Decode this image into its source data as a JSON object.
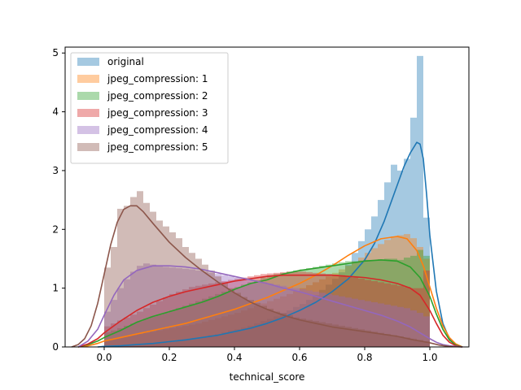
{
  "chart_data": {
    "type": "histogram-kde",
    "title": "",
    "xlabel": "technical_score",
    "ylabel": "",
    "xlim": [
      -0.12,
      1.12
    ],
    "ylim": [
      0,
      5.1
    ],
    "xticks": [
      "0.0",
      "0.2",
      "0.4",
      "0.6",
      "0.8",
      "1.0"
    ],
    "xtick_values": [
      0.0,
      0.2,
      0.4,
      0.6,
      0.8,
      1.0
    ],
    "yticks": [
      "0",
      "1",
      "2",
      "3",
      "4",
      "5"
    ],
    "ytick_values": [
      0,
      1,
      2,
      3,
      4,
      5
    ],
    "grid": false,
    "legend_position": "upper-left",
    "bin_edges": [
      0.0,
      0.02,
      0.04,
      0.06,
      0.08,
      0.1,
      0.12,
      0.14,
      0.16,
      0.18,
      0.2,
      0.22,
      0.24,
      0.26,
      0.28,
      0.3,
      0.32,
      0.34,
      0.36,
      0.38,
      0.4,
      0.42,
      0.44,
      0.46,
      0.48,
      0.5,
      0.52,
      0.54,
      0.56,
      0.58,
      0.6,
      0.62,
      0.64,
      0.66,
      0.68,
      0.7,
      0.72,
      0.74,
      0.76,
      0.78,
      0.8,
      0.82,
      0.84,
      0.86,
      0.88,
      0.9,
      0.92,
      0.94,
      0.96,
      0.98,
      1.0
    ],
    "series": [
      {
        "name": "original",
        "color": "#1f77b4",
        "hist": [
          0.01,
          0.01,
          0.02,
          0.02,
          0.03,
          0.03,
          0.04,
          0.05,
          0.06,
          0.07,
          0.08,
          0.1,
          0.12,
          0.13,
          0.15,
          0.17,
          0.2,
          0.22,
          0.25,
          0.28,
          0.3,
          0.33,
          0.36,
          0.4,
          0.44,
          0.48,
          0.52,
          0.58,
          0.62,
          0.68,
          0.73,
          0.8,
          0.88,
          0.97,
          1.06,
          1.16,
          1.27,
          1.4,
          1.6,
          1.8,
          2.0,
          2.22,
          2.5,
          2.8,
          3.1,
          3.0,
          3.2,
          3.9,
          4.95,
          2.2
        ],
        "kde_x": [
          -0.02,
          0.0,
          0.05,
          0.1,
          0.15,
          0.2,
          0.25,
          0.3,
          0.35,
          0.4,
          0.45,
          0.5,
          0.55,
          0.6,
          0.65,
          0.7,
          0.75,
          0.8,
          0.83,
          0.86,
          0.89,
          0.92,
          0.94,
          0.96,
          0.97,
          0.98,
          0.99,
          1.0,
          1.02,
          1.04,
          1.06,
          1.08,
          1.1
        ],
        "kde_y": [
          0.0,
          0.01,
          0.02,
          0.04,
          0.06,
          0.09,
          0.12,
          0.16,
          0.2,
          0.26,
          0.32,
          0.4,
          0.5,
          0.62,
          0.76,
          0.94,
          1.16,
          1.48,
          1.76,
          2.14,
          2.6,
          3.06,
          3.3,
          3.48,
          3.45,
          3.2,
          2.6,
          1.9,
          0.95,
          0.4,
          0.14,
          0.04,
          0.0
        ]
      },
      {
        "name": "jpeg_compression: 1",
        "color": "#ff7f0e",
        "hist": [
          0.12,
          0.14,
          0.16,
          0.18,
          0.2,
          0.22,
          0.24,
          0.26,
          0.28,
          0.3,
          0.32,
          0.34,
          0.36,
          0.38,
          0.4,
          0.43,
          0.46,
          0.49,
          0.52,
          0.55,
          0.58,
          0.62,
          0.66,
          0.7,
          0.74,
          0.78,
          0.82,
          0.86,
          0.9,
          0.95,
          1.0,
          1.05,
          1.1,
          1.15,
          1.2,
          1.26,
          1.32,
          1.38,
          1.45,
          1.52,
          1.6,
          1.68,
          1.75,
          1.82,
          1.88,
          1.9,
          1.92,
          1.85,
          1.7,
          1.5
        ],
        "kde_x": [
          -0.08,
          -0.05,
          -0.02,
          0.0,
          0.05,
          0.1,
          0.15,
          0.2,
          0.25,
          0.3,
          0.35,
          0.4,
          0.45,
          0.5,
          0.55,
          0.6,
          0.65,
          0.7,
          0.75,
          0.8,
          0.85,
          0.9,
          0.93,
          0.96,
          0.98,
          1.0,
          1.02,
          1.04,
          1.06,
          1.08,
          1.1
        ],
        "kde_y": [
          0.0,
          0.02,
          0.06,
          0.1,
          0.16,
          0.22,
          0.28,
          0.34,
          0.4,
          0.48,
          0.56,
          0.64,
          0.74,
          0.84,
          0.96,
          1.08,
          1.22,
          1.38,
          1.56,
          1.72,
          1.84,
          1.88,
          1.84,
          1.64,
          1.38,
          1.02,
          0.66,
          0.36,
          0.16,
          0.05,
          0.0
        ]
      },
      {
        "name": "jpeg_compression: 2",
        "color": "#2ca02c",
        "hist": [
          0.25,
          0.28,
          0.32,
          0.36,
          0.4,
          0.44,
          0.48,
          0.52,
          0.55,
          0.58,
          0.62,
          0.66,
          0.7,
          0.74,
          0.78,
          0.82,
          0.86,
          0.9,
          0.94,
          0.98,
          1.02,
          1.06,
          1.1,
          1.14,
          1.18,
          1.22,
          1.24,
          1.26,
          1.28,
          1.3,
          1.32,
          1.34,
          1.36,
          1.38,
          1.4,
          1.42,
          1.44,
          1.46,
          1.46,
          1.47,
          1.48,
          1.48,
          1.49,
          1.5,
          1.5,
          1.48,
          1.52,
          1.55,
          1.65,
          1.55
        ],
        "kde_x": [
          -0.08,
          -0.05,
          -0.02,
          0.0,
          0.05,
          0.1,
          0.15,
          0.2,
          0.25,
          0.3,
          0.35,
          0.4,
          0.45,
          0.5,
          0.55,
          0.6,
          0.65,
          0.7,
          0.75,
          0.8,
          0.85,
          0.9,
          0.94,
          0.97,
          1.0,
          1.02,
          1.04,
          1.06,
          1.08,
          1.1
        ],
        "kde_y": [
          0.0,
          0.04,
          0.1,
          0.16,
          0.28,
          0.42,
          0.52,
          0.6,
          0.68,
          0.76,
          0.86,
          0.98,
          1.08,
          1.14,
          1.24,
          1.3,
          1.34,
          1.38,
          1.42,
          1.46,
          1.48,
          1.46,
          1.36,
          1.18,
          0.86,
          0.56,
          0.3,
          0.12,
          0.03,
          0.0
        ]
      },
      {
        "name": "jpeg_compression: 3",
        "color": "#d62728",
        "hist": [
          0.35,
          0.4,
          0.45,
          0.5,
          0.55,
          0.6,
          0.66,
          0.72,
          0.78,
          0.84,
          0.9,
          0.94,
          0.98,
          1.02,
          1.04,
          1.06,
          1.08,
          1.1,
          1.12,
          1.14,
          1.16,
          1.18,
          1.2,
          1.22,
          1.24,
          1.25,
          1.26,
          1.27,
          1.28,
          1.28,
          1.28,
          1.27,
          1.26,
          1.25,
          1.24,
          1.23,
          1.22,
          1.2,
          1.18,
          1.16,
          1.14,
          1.12,
          1.1,
          1.08,
          1.06,
          1.04,
          1.02,
          1.0,
          1.0,
          1.3
        ],
        "kde_x": [
          -0.08,
          -0.05,
          -0.02,
          0.0,
          0.05,
          0.1,
          0.15,
          0.2,
          0.25,
          0.3,
          0.35,
          0.4,
          0.45,
          0.5,
          0.55,
          0.6,
          0.65,
          0.7,
          0.75,
          0.8,
          0.85,
          0.9,
          0.94,
          0.97,
          1.0,
          1.02,
          1.04,
          1.06,
          1.08,
          1.1
        ],
        "kde_y": [
          0.0,
          0.05,
          0.14,
          0.24,
          0.44,
          0.62,
          0.76,
          0.86,
          0.94,
          1.0,
          1.06,
          1.12,
          1.16,
          1.2,
          1.22,
          1.22,
          1.22,
          1.22,
          1.2,
          1.18,
          1.14,
          1.08,
          1.0,
          0.88,
          0.62,
          0.4,
          0.2,
          0.08,
          0.02,
          0.0
        ]
      },
      {
        "name": "jpeg_compression: 4",
        "color": "#9467bd",
        "hist": [
          0.6,
          0.8,
          1.0,
          1.15,
          1.28,
          1.38,
          1.42,
          1.4,
          1.38,
          1.36,
          1.35,
          1.34,
          1.33,
          1.32,
          1.3,
          1.28,
          1.26,
          1.24,
          1.22,
          1.2,
          1.18,
          1.16,
          1.14,
          1.12,
          1.1,
          1.08,
          1.06,
          1.04,
          1.02,
          1.0,
          0.98,
          0.96,
          0.94,
          0.92,
          0.9,
          0.88,
          0.86,
          0.84,
          0.82,
          0.8,
          0.78,
          0.76,
          0.74,
          0.72,
          0.7,
          0.68,
          0.66,
          0.62,
          0.58,
          0.52
        ],
        "kde_x": [
          -0.08,
          -0.05,
          -0.02,
          0.0,
          0.03,
          0.06,
          0.1,
          0.15,
          0.2,
          0.25,
          0.3,
          0.35,
          0.4,
          0.45,
          0.5,
          0.55,
          0.6,
          0.65,
          0.7,
          0.75,
          0.8,
          0.85,
          0.9,
          0.94,
          0.97,
          1.0,
          1.02,
          1.04,
          1.06,
          1.08,
          1.1
        ],
        "kde_y": [
          0.0,
          0.1,
          0.3,
          0.54,
          0.88,
          1.14,
          1.3,
          1.38,
          1.38,
          1.36,
          1.32,
          1.26,
          1.2,
          1.14,
          1.08,
          1.0,
          0.94,
          0.86,
          0.78,
          0.7,
          0.62,
          0.54,
          0.44,
          0.34,
          0.24,
          0.14,
          0.08,
          0.04,
          0.02,
          0.01,
          0.0
        ]
      },
      {
        "name": "jpeg_compression: 5",
        "color": "#8c564b",
        "hist": [
          1.35,
          1.7,
          2.35,
          2.4,
          2.55,
          2.65,
          2.45,
          2.3,
          2.15,
          2.05,
          1.95,
          1.85,
          1.7,
          1.6,
          1.5,
          1.4,
          1.3,
          1.2,
          1.1,
          1.0,
          0.92,
          0.85,
          0.8,
          0.75,
          0.7,
          0.65,
          0.6,
          0.57,
          0.54,
          0.5,
          0.48,
          0.46,
          0.44,
          0.42,
          0.4,
          0.38,
          0.36,
          0.34,
          0.32,
          0.3,
          0.28,
          0.26,
          0.24,
          0.22,
          0.2,
          0.18,
          0.16,
          0.14,
          0.12,
          0.1
        ],
        "kde_x": [
          -0.1,
          -0.08,
          -0.06,
          -0.04,
          -0.02,
          0.0,
          0.02,
          0.04,
          0.06,
          0.08,
          0.1,
          0.12,
          0.15,
          0.2,
          0.25,
          0.3,
          0.35,
          0.4,
          0.45,
          0.5,
          0.55,
          0.6,
          0.65,
          0.7,
          0.75,
          0.8,
          0.85,
          0.9,
          0.95,
          1.0,
          1.03,
          1.06,
          1.1
        ],
        "kde_y": [
          0.0,
          0.04,
          0.14,
          0.36,
          0.74,
          1.24,
          1.74,
          2.12,
          2.34,
          2.4,
          2.4,
          2.3,
          2.1,
          1.78,
          1.52,
          1.3,
          1.1,
          0.92,
          0.76,
          0.64,
          0.54,
          0.46,
          0.4,
          0.34,
          0.3,
          0.26,
          0.22,
          0.18,
          0.12,
          0.07,
          0.03,
          0.01,
          0.0
        ]
      }
    ]
  }
}
